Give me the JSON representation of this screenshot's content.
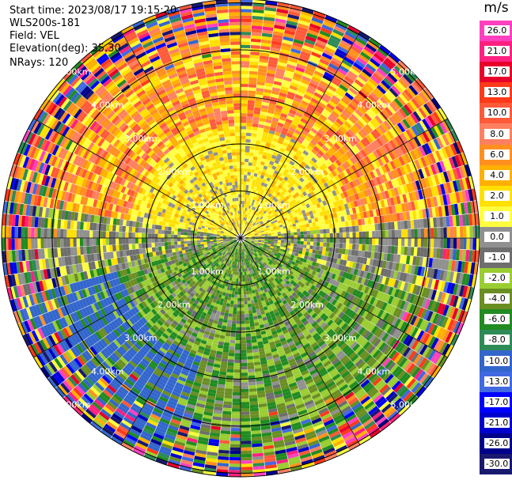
{
  "header": {
    "start_time": "Start time: 2023/08/17 19:15:20",
    "instrument": "WLS200s-181",
    "field": "Field: VEL",
    "elevation": "Elevation(deg): 35.30",
    "nrays": "NRays: 120"
  },
  "range_labels": [
    "1.00km",
    "2.00km",
    "3.00km",
    "4.00km",
    "5.00km"
  ],
  "colorbar": {
    "unit": "m/s",
    "labels": [
      "26.0",
      "21.0",
      "17.0",
      "13.0",
      "10.0",
      "8.0",
      "6.0",
      "4.0",
      "2.0",
      "1.0",
      "0.0",
      "-1.0",
      "-2.0",
      "-4.0",
      "-6.0",
      "-8.0",
      "-10.0",
      "-13.0",
      "-17.0",
      "-21.0",
      "-26.0",
      "-30.0"
    ],
    "colors": [
      "#ff40c0",
      "#ff2080",
      "#e8002a",
      "#ff3a1a",
      "#ff5a3a",
      "#ff8060",
      "#ff9020",
      "#ffb000",
      "#ffe000",
      "#ffff40",
      "#909090",
      "#6e6e6e",
      "#9acd32",
      "#6b8e23",
      "#228b22",
      "#2e8b57",
      "#3366cc",
      "#4169e1",
      "#0000ff",
      "#0000cd",
      "#00008b",
      "#191970"
    ]
  }
}
